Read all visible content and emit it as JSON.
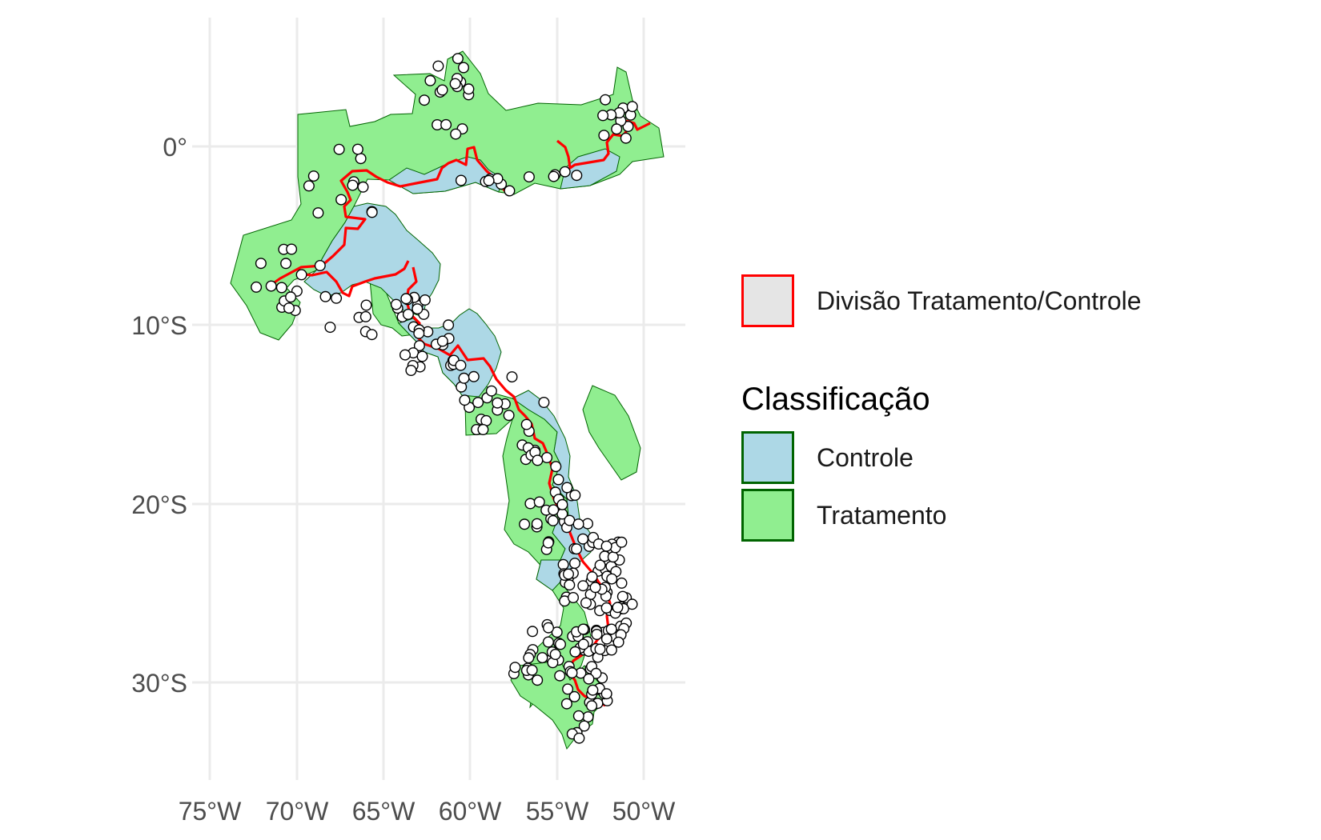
{
  "map": {
    "axes": {
      "x_ticks": [
        "75°W",
        "70°W",
        "65°W",
        "60°W",
        "55°W",
        "50°W"
      ],
      "y_ticks": [
        "0°",
        "10°S",
        "20°S",
        "30°S"
      ]
    },
    "colors": {
      "tratamento_fill": "#90EE90",
      "controle_fill": "#ADD8E6",
      "region_border": "#006400",
      "division_line": "#FF0000",
      "points_fill": "#FFFFFF",
      "points_stroke": "#000000",
      "grid": "#EBEBEB"
    }
  },
  "legend": {
    "division_label": "Divisão Tratamento/Controle",
    "title": "Classificação",
    "items": [
      {
        "label": "Controle",
        "color": "#ADD8E6"
      },
      {
        "label": "Tratamento",
        "color": "#90EE90"
      }
    ]
  }
}
